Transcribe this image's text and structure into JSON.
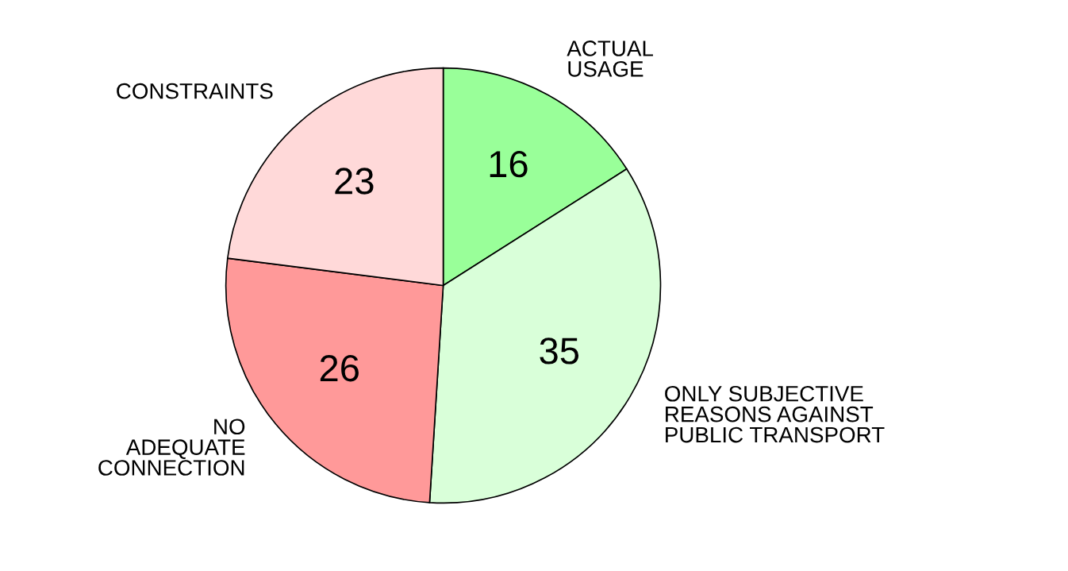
{
  "chart_data": {
    "type": "pie",
    "categories": [
      "ACTUAL\nUSAGE",
      "ONLY SUBJECTIVE\nREASONS AGAINST\nPUBLIC TRANSPORT",
      "NO\nADEQUATE\nCONNECTION",
      "CONSTRAINTS"
    ],
    "values": [
      16,
      35,
      26,
      23
    ],
    "colors": [
      "#99ff99",
      "#d9ffd9",
      "#ff9999",
      "#ffd9d9"
    ],
    "data_labels": true
  }
}
